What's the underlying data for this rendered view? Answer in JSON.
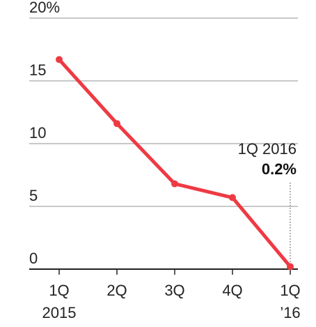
{
  "chart_data": {
    "type": "line",
    "x_categories": [
      "1Q",
      "2Q",
      "3Q",
      "4Q",
      "1Q"
    ],
    "x_sublabels": [
      "2015",
      "",
      "",
      "",
      "’16"
    ],
    "y_ticks": [
      "20%",
      "15",
      "10",
      "5",
      "0"
    ],
    "y_tick_values": [
      20,
      15,
      10,
      5,
      0
    ],
    "ylim": [
      0,
      20
    ],
    "grid": true,
    "series": [
      {
        "values": [
          16.7,
          11.6,
          6.8,
          5.7,
          0.2
        ],
        "color": "#ee3a43"
      }
    ],
    "annotation": {
      "label": "1Q 2016",
      "value": "0.2%",
      "point_index": 4
    }
  },
  "colors": {
    "line": "#ee3a43",
    "grid": "#c8c8c8",
    "axis": "#222222",
    "text": "#222222"
  }
}
